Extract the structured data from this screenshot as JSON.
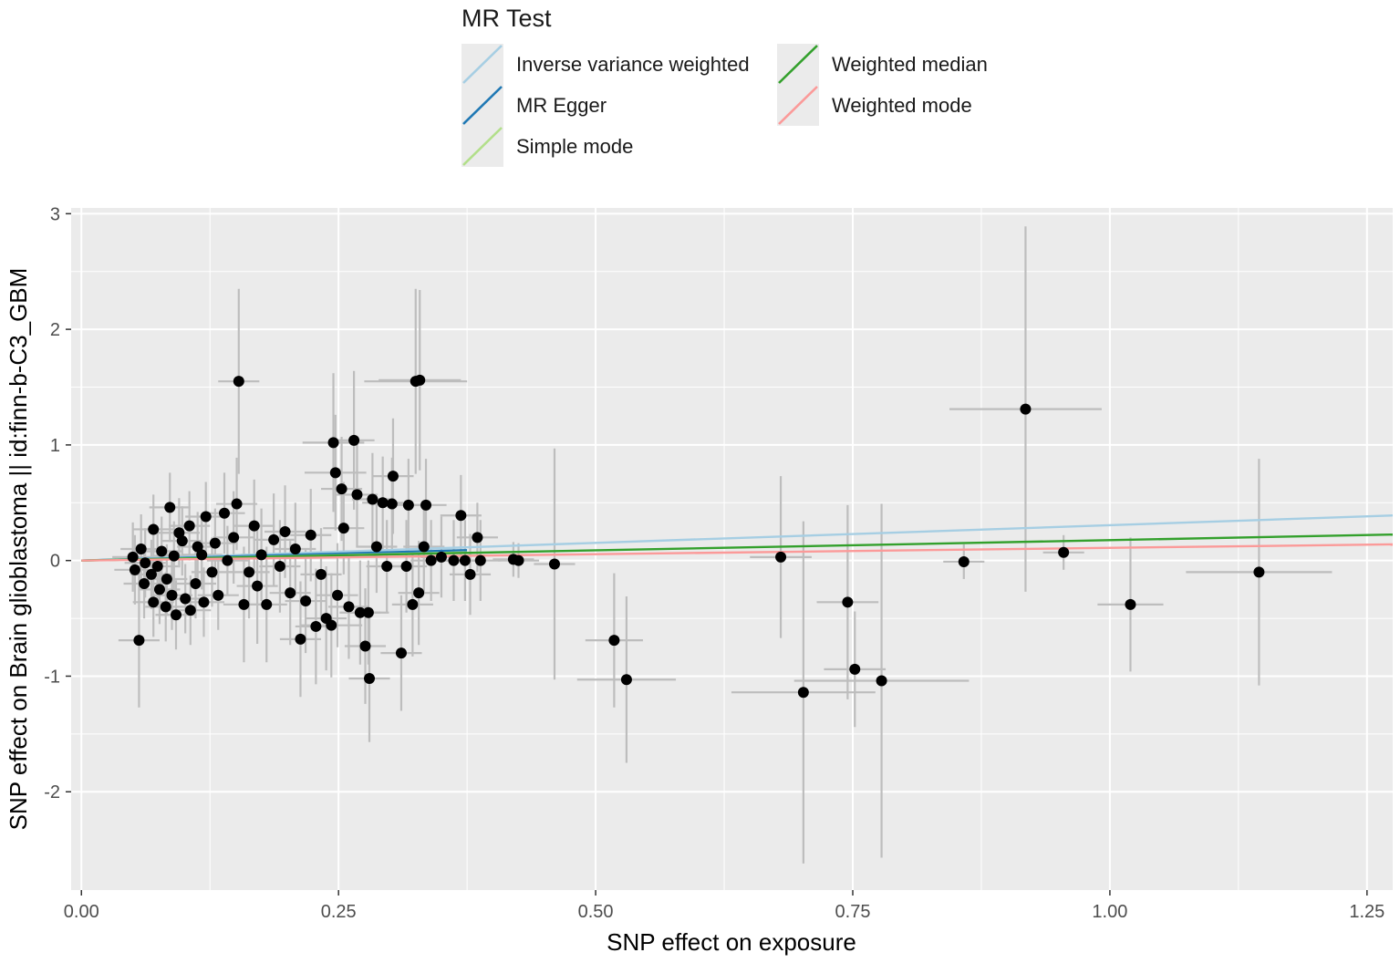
{
  "chart_data": {
    "type": "scatter",
    "xlabel": "SNP effect on exposure",
    "ylabel": "SNP effect on Brain glioblastoma || id:finn-b-C3_GBM",
    "xlim": [
      -0.01,
      1.275
    ],
    "ylim": [
      -2.85,
      3.05
    ],
    "x_ticks": [
      0.0,
      0.25,
      0.5,
      0.75,
      1.0,
      1.25
    ],
    "x_tick_labels": [
      "0.00",
      "0.25",
      "0.50",
      "0.75",
      "1.00",
      "1.25"
    ],
    "y_ticks": [
      -2,
      -1,
      0,
      1,
      2,
      3
    ],
    "y_tick_labels": [
      "-2",
      "-1",
      "0",
      "1",
      "2",
      "3"
    ],
    "grid": true,
    "legend": {
      "title": "MR Test",
      "position": "top",
      "entries": [
        {
          "label": "Inverse variance weighted",
          "color": "#a6cee3"
        },
        {
          "label": "MR Egger",
          "color": "#1f78b4"
        },
        {
          "label": "Simple mode",
          "color": "#b2df8a"
        },
        {
          "label": "Weighted median",
          "color": "#33a02c"
        },
        {
          "label": "Weighted mode",
          "color": "#fb9a99"
        }
      ]
    },
    "lines": [
      {
        "name": "Inverse variance weighted",
        "color": "#a6cee3",
        "x": [
          0.0,
          1.275
        ],
        "y": [
          0.0,
          0.39
        ]
      },
      {
        "name": "MR Egger",
        "color": "#1f78b4",
        "x": [
          0.0,
          0.375
        ],
        "y": [
          0.0,
          0.09
        ]
      },
      {
        "name": "Simple mode",
        "color": "#b2df8a",
        "x": [
          0.0,
          0.375
        ],
        "y": [
          0.0,
          0.07
        ]
      },
      {
        "name": "Weighted median",
        "color": "#33a02c",
        "x": [
          0.0,
          1.275
        ],
        "y": [
          0.0,
          0.225
        ]
      },
      {
        "name": "Weighted mode",
        "color": "#fb9a99",
        "x": [
          0.0,
          1.275
        ],
        "y": [
          0.0,
          0.14
        ]
      }
    ],
    "points": [
      {
        "x": 0.153,
        "y": 1.55,
        "xerr": 0.02,
        "yerr": 0.8
      },
      {
        "x": 0.325,
        "y": 1.55,
        "xerr": 0.05,
        "yerr": 0.8
      },
      {
        "x": 0.329,
        "y": 1.56,
        "xerr": 0.04,
        "yerr": 0.78
      },
      {
        "x": 0.245,
        "y": 1.02,
        "xerr": 0.03,
        "yerr": 0.6
      },
      {
        "x": 0.265,
        "y": 1.04,
        "xerr": 0.02,
        "yerr": 0.6
      },
      {
        "x": 0.247,
        "y": 0.76,
        "xerr": 0.03,
        "yerr": 0.5
      },
      {
        "x": 0.303,
        "y": 0.73,
        "xerr": 0.02,
        "yerr": 0.5
      },
      {
        "x": 0.253,
        "y": 0.62,
        "xerr": 0.02,
        "yerr": 0.45
      },
      {
        "x": 0.268,
        "y": 0.57,
        "xerr": 0.02,
        "yerr": 0.45
      },
      {
        "x": 0.283,
        "y": 0.53,
        "xerr": 0.02,
        "yerr": 0.4
      },
      {
        "x": 0.293,
        "y": 0.5,
        "xerr": 0.02,
        "yerr": 0.4
      },
      {
        "x": 0.302,
        "y": 0.49,
        "xerr": 0.02,
        "yerr": 0.4
      },
      {
        "x": 0.318,
        "y": 0.48,
        "xerr": 0.02,
        "yerr": 0.4
      },
      {
        "x": 0.335,
        "y": 0.48,
        "xerr": 0.02,
        "yerr": 0.4
      },
      {
        "x": 0.151,
        "y": 0.49,
        "xerr": 0.02,
        "yerr": 0.4
      },
      {
        "x": 0.139,
        "y": 0.41,
        "xerr": 0.02,
        "yerr": 0.35
      },
      {
        "x": 0.369,
        "y": 0.39,
        "xerr": 0.02,
        "yerr": 0.35
      },
      {
        "x": 0.385,
        "y": 0.2,
        "xerr": 0.02,
        "yerr": 0.3
      },
      {
        "x": 0.086,
        "y": 0.46,
        "xerr": 0.02,
        "yerr": 0.3
      },
      {
        "x": 0.121,
        "y": 0.38,
        "xerr": 0.02,
        "yerr": 0.3
      },
      {
        "x": 0.105,
        "y": 0.3,
        "xerr": 0.02,
        "yerr": 0.3
      },
      {
        "x": 0.07,
        "y": 0.27,
        "xerr": 0.02,
        "yerr": 0.3
      },
      {
        "x": 0.095,
        "y": 0.24,
        "xerr": 0.02,
        "yerr": 0.3
      },
      {
        "x": 0.13,
        "y": 0.15,
        "xerr": 0.02,
        "yerr": 0.3
      },
      {
        "x": 0.113,
        "y": 0.12,
        "xerr": 0.02,
        "yerr": 0.3
      },
      {
        "x": 0.058,
        "y": 0.1,
        "xerr": 0.02,
        "yerr": 0.3
      },
      {
        "x": 0.078,
        "y": 0.08,
        "xerr": 0.02,
        "yerr": 0.3
      },
      {
        "x": 0.09,
        "y": 0.04,
        "xerr": 0.02,
        "yerr": 0.3
      },
      {
        "x": 0.05,
        "y": 0.03,
        "xerr": 0.02,
        "yerr": 0.3
      },
      {
        "x": 0.062,
        "y": -0.02,
        "xerr": 0.02,
        "yerr": 0.3
      },
      {
        "x": 0.074,
        "y": -0.05,
        "xerr": 0.02,
        "yerr": 0.3
      },
      {
        "x": 0.052,
        "y": -0.08,
        "xerr": 0.02,
        "yerr": 0.3
      },
      {
        "x": 0.068,
        "y": -0.12,
        "xerr": 0.02,
        "yerr": 0.3
      },
      {
        "x": 0.083,
        "y": -0.16,
        "xerr": 0.02,
        "yerr": 0.3
      },
      {
        "x": 0.061,
        "y": -0.2,
        "xerr": 0.02,
        "yerr": 0.3
      },
      {
        "x": 0.076,
        "y": -0.25,
        "xerr": 0.02,
        "yerr": 0.3
      },
      {
        "x": 0.088,
        "y": -0.3,
        "xerr": 0.02,
        "yerr": 0.3
      },
      {
        "x": 0.101,
        "y": -0.33,
        "xerr": 0.02,
        "yerr": 0.3
      },
      {
        "x": 0.07,
        "y": -0.36,
        "xerr": 0.02,
        "yerr": 0.3
      },
      {
        "x": 0.082,
        "y": -0.4,
        "xerr": 0.02,
        "yerr": 0.3
      },
      {
        "x": 0.106,
        "y": -0.43,
        "xerr": 0.02,
        "yerr": 0.3
      },
      {
        "x": 0.092,
        "y": -0.47,
        "xerr": 0.02,
        "yerr": 0.3
      },
      {
        "x": 0.119,
        "y": -0.36,
        "xerr": 0.02,
        "yerr": 0.3
      },
      {
        "x": 0.133,
        "y": -0.3,
        "xerr": 0.02,
        "yerr": 0.3
      },
      {
        "x": 0.111,
        "y": -0.2,
        "xerr": 0.02,
        "yerr": 0.3
      },
      {
        "x": 0.127,
        "y": -0.1,
        "xerr": 0.02,
        "yerr": 0.3
      },
      {
        "x": 0.142,
        "y": 0.0,
        "xerr": 0.02,
        "yerr": 0.3
      },
      {
        "x": 0.098,
        "y": 0.17,
        "xerr": 0.02,
        "yerr": 0.3
      },
      {
        "x": 0.117,
        "y": 0.05,
        "xerr": 0.02,
        "yerr": 0.3
      },
      {
        "x": 0.056,
        "y": -0.69,
        "xerr": 0.02,
        "yerr": 0.58
      },
      {
        "x": 0.148,
        "y": 0.2,
        "xerr": 0.02,
        "yerr": 0.4
      },
      {
        "x": 0.158,
        "y": -0.38,
        "xerr": 0.02,
        "yerr": 0.5
      },
      {
        "x": 0.163,
        "y": -0.1,
        "xerr": 0.02,
        "yerr": 0.4
      },
      {
        "x": 0.168,
        "y": 0.3,
        "xerr": 0.02,
        "yerr": 0.4
      },
      {
        "x": 0.175,
        "y": 0.05,
        "xerr": 0.02,
        "yerr": 0.4
      },
      {
        "x": 0.171,
        "y": -0.22,
        "xerr": 0.02,
        "yerr": 0.5
      },
      {
        "x": 0.18,
        "y": -0.38,
        "xerr": 0.02,
        "yerr": 0.5
      },
      {
        "x": 0.187,
        "y": 0.18,
        "xerr": 0.02,
        "yerr": 0.4
      },
      {
        "x": 0.193,
        "y": -0.05,
        "xerr": 0.02,
        "yerr": 0.4
      },
      {
        "x": 0.198,
        "y": 0.25,
        "xerr": 0.02,
        "yerr": 0.4
      },
      {
        "x": 0.203,
        "y": -0.28,
        "xerr": 0.02,
        "yerr": 0.45
      },
      {
        "x": 0.208,
        "y": 0.1,
        "xerr": 0.02,
        "yerr": 0.4
      },
      {
        "x": 0.213,
        "y": -0.68,
        "xerr": 0.02,
        "yerr": 0.5
      },
      {
        "x": 0.218,
        "y": -0.35,
        "xerr": 0.02,
        "yerr": 0.45
      },
      {
        "x": 0.223,
        "y": 0.22,
        "xerr": 0.02,
        "yerr": 0.4
      },
      {
        "x": 0.228,
        "y": -0.57,
        "xerr": 0.02,
        "yerr": 0.5
      },
      {
        "x": 0.233,
        "y": -0.12,
        "xerr": 0.02,
        "yerr": 0.4
      },
      {
        "x": 0.238,
        "y": -0.5,
        "xerr": 0.02,
        "yerr": 0.45
      },
      {
        "x": 0.243,
        "y": -0.56,
        "xerr": 0.03,
        "yerr": 0.45
      },
      {
        "x": 0.249,
        "y": -0.3,
        "xerr": 0.02,
        "yerr": 0.45
      },
      {
        "x": 0.255,
        "y": 0.28,
        "xerr": 0.02,
        "yerr": 0.4
      },
      {
        "x": 0.26,
        "y": -0.4,
        "xerr": 0.02,
        "yerr": 0.45
      },
      {
        "x": 0.271,
        "y": -0.45,
        "xerr": 0.02,
        "yerr": 0.45
      },
      {
        "x": 0.276,
        "y": -0.74,
        "xerr": 0.02,
        "yerr": 0.5
      },
      {
        "x": 0.279,
        "y": -0.45,
        "xerr": 0.02,
        "yerr": 0.45
      },
      {
        "x": 0.28,
        "y": -1.02,
        "xerr": 0.02,
        "yerr": 0.55
      },
      {
        "x": 0.287,
        "y": 0.12,
        "xerr": 0.02,
        "yerr": 0.4
      },
      {
        "x": 0.297,
        "y": -0.05,
        "xerr": 0.02,
        "yerr": 0.4
      },
      {
        "x": 0.311,
        "y": -0.8,
        "xerr": 0.02,
        "yerr": 0.5
      },
      {
        "x": 0.316,
        "y": -0.05,
        "xerr": 0.02,
        "yerr": 0.4
      },
      {
        "x": 0.322,
        "y": -0.38,
        "xerr": 0.02,
        "yerr": 0.45
      },
      {
        "x": 0.328,
        "y": -0.28,
        "xerr": 0.02,
        "yerr": 0.45
      },
      {
        "x": 0.333,
        "y": 0.12,
        "xerr": 0.02,
        "yerr": 0.4
      },
      {
        "x": 0.34,
        "y": 0.0,
        "xerr": 0.02,
        "yerr": 0.35
      },
      {
        "x": 0.35,
        "y": 0.03,
        "xerr": 0.02,
        "yerr": 0.35
      },
      {
        "x": 0.362,
        "y": 0.0,
        "xerr": 0.02,
        "yerr": 0.35
      },
      {
        "x": 0.373,
        "y": 0.0,
        "xerr": 0.02,
        "yerr": 0.35
      },
      {
        "x": 0.378,
        "y": -0.12,
        "xerr": 0.02,
        "yerr": 0.35
      },
      {
        "x": 0.388,
        "y": 0.0,
        "xerr": 0.02,
        "yerr": 0.35
      },
      {
        "x": 0.42,
        "y": 0.01,
        "xerr": 0.02,
        "yerr": 0.15
      },
      {
        "x": 0.425,
        "y": 0.0,
        "xerr": 0.02,
        "yerr": 0.15
      },
      {
        "x": 0.46,
        "y": -0.03,
        "xerr": 0.02,
        "yerr": 1.0
      },
      {
        "x": 0.518,
        "y": -0.69,
        "xerr": 0.028,
        "yerr": 0.58
      },
      {
        "x": 0.53,
        "y": -1.03,
        "xerr": 0.048,
        "yerr": 0.72
      },
      {
        "x": 0.68,
        "y": 0.03,
        "xerr": 0.03,
        "yerr": 0.7
      },
      {
        "x": 0.702,
        "y": -1.14,
        "xerr": 0.07,
        "yerr": 1.48
      },
      {
        "x": 0.745,
        "y": -0.36,
        "xerr": 0.03,
        "yerr": 0.84
      },
      {
        "x": 0.752,
        "y": -0.94,
        "xerr": 0.03,
        "yerr": 0.5
      },
      {
        "x": 0.778,
        "y": -1.04,
        "xerr": 0.085,
        "yerr": 1.53
      },
      {
        "x": 0.858,
        "y": -0.01,
        "xerr": 0.02,
        "yerr": 0.15
      },
      {
        "x": 0.918,
        "y": 1.31,
        "xerr": 0.074,
        "yerr": 1.58
      },
      {
        "x": 0.955,
        "y": 0.07,
        "xerr": 0.02,
        "yerr": 0.15
      },
      {
        "x": 1.02,
        "y": -0.38,
        "xerr": 0.032,
        "yerr": 0.58
      },
      {
        "x": 1.145,
        "y": -0.1,
        "xerr": 0.071,
        "yerr": 0.98
      }
    ]
  }
}
